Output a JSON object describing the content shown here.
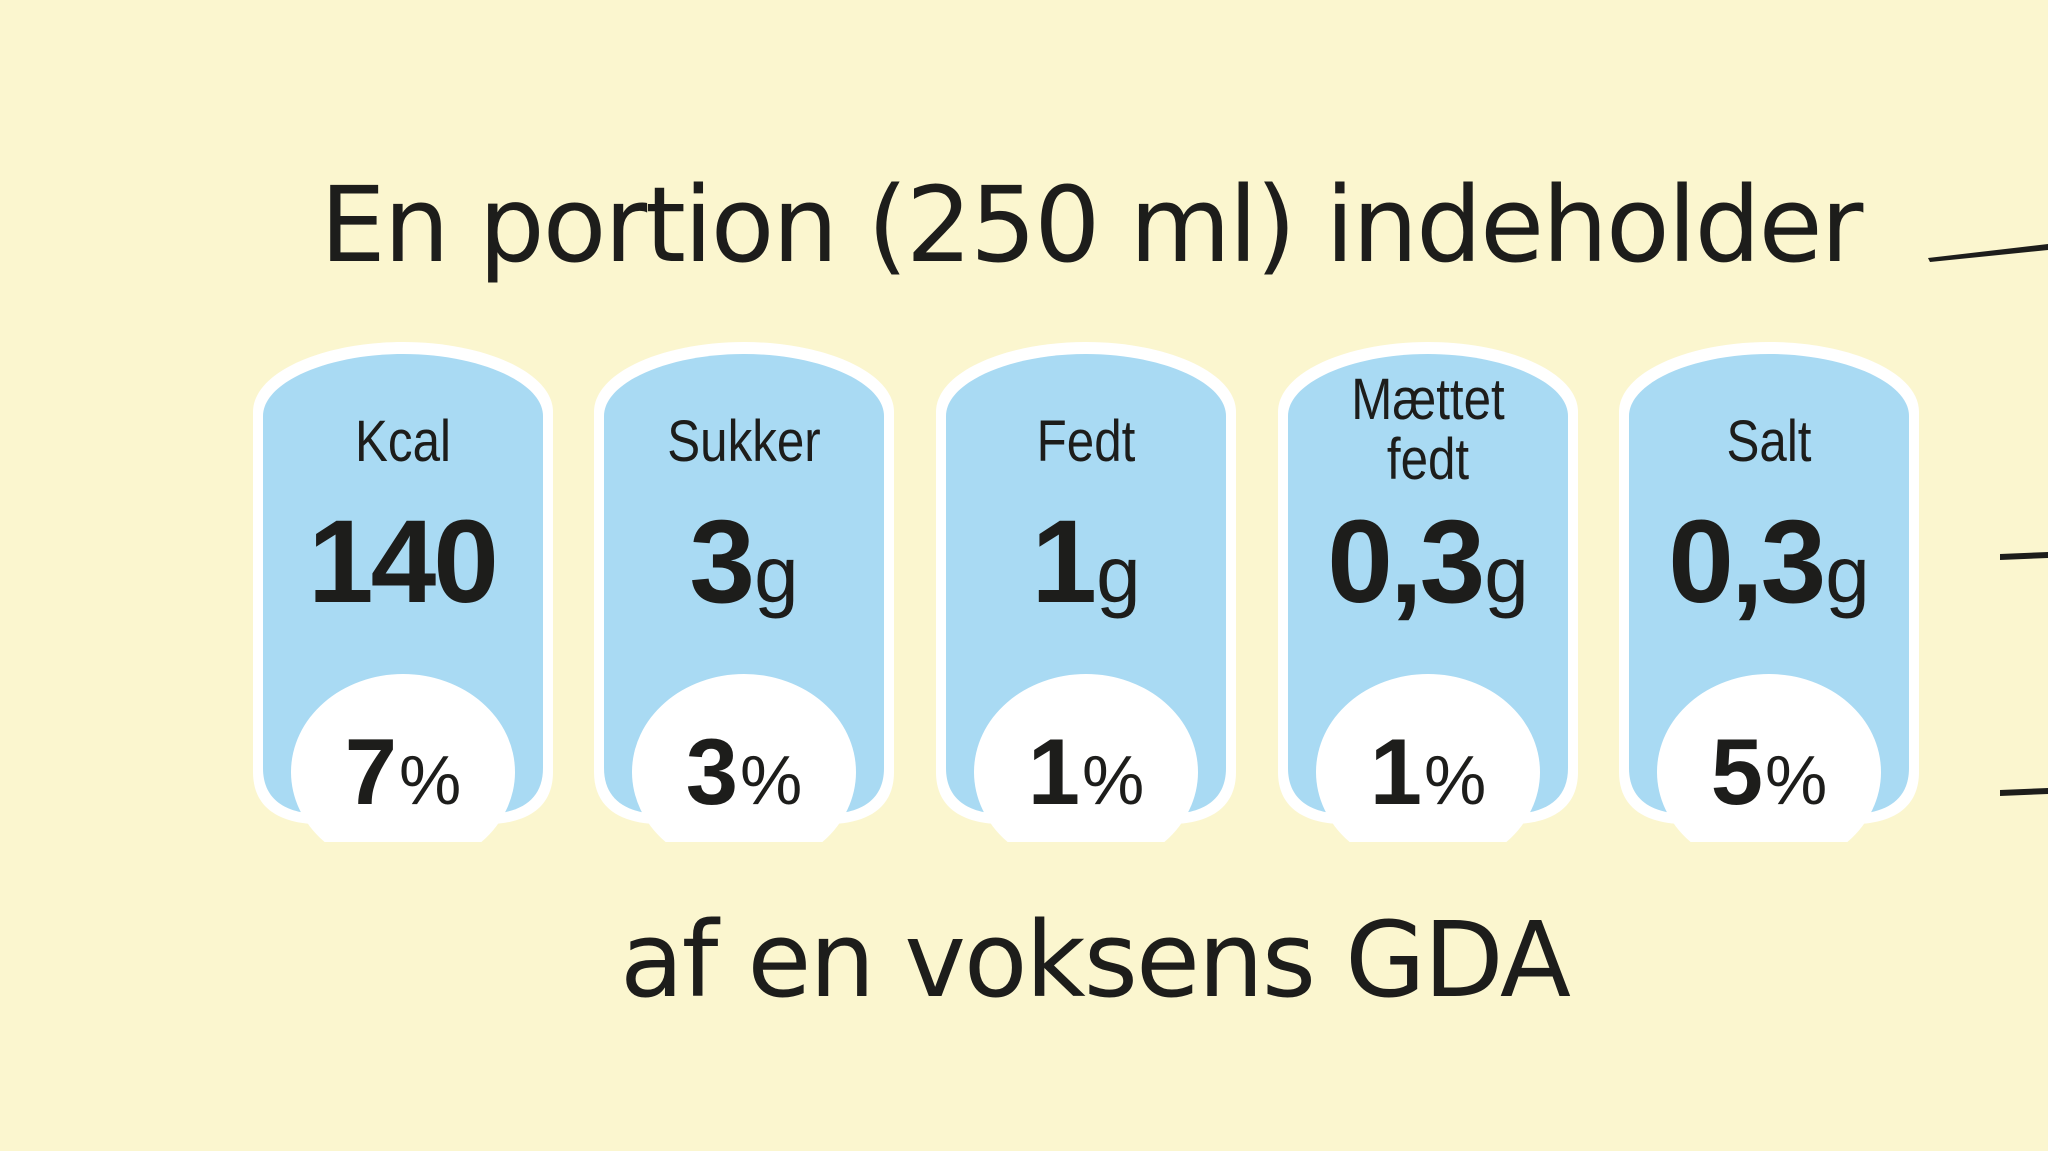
{
  "heading": "En portion (250 ml) indeholder",
  "footer": "af en voksens GDA",
  "colors": {
    "background": "#fbf6cf",
    "label_fill": "#a9daf3",
    "label_outline": "#ffffff",
    "text": "#1d1d1b"
  },
  "nutrients": [
    {
      "name_line1": "Kcal",
      "name_line2": "",
      "amount": "140",
      "unit": "",
      "percent": "7",
      "percent_sign": "%"
    },
    {
      "name_line1": "Sukker",
      "name_line2": "",
      "amount": "3",
      "unit": "g",
      "percent": "3",
      "percent_sign": "%"
    },
    {
      "name_line1": "Fedt",
      "name_line2": "",
      "amount": "1",
      "unit": "g",
      "percent": "1",
      "percent_sign": "%"
    },
    {
      "name_line1": "Mættet",
      "name_line2": "fedt",
      "amount": "0,3",
      "unit": "g",
      "percent": "1",
      "percent_sign": "%"
    },
    {
      "name_line1": "Salt",
      "name_line2": "",
      "amount": "0,3",
      "unit": "g",
      "percent": "5",
      "percent_sign": "%"
    }
  ]
}
